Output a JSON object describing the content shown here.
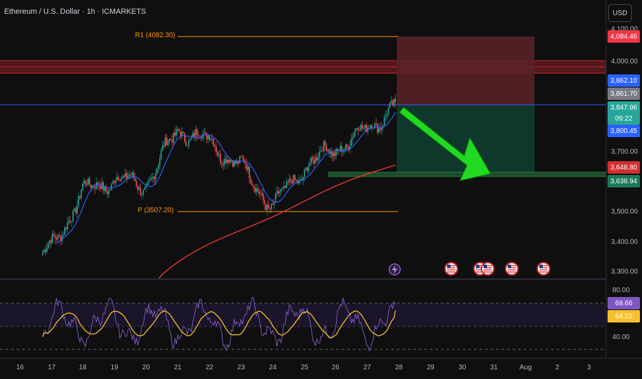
{
  "header": {
    "symbol_title": "Ethereum / U.S. Dollar · 1h · ICMARKETS",
    "currency_button": "USD"
  },
  "pivots": {
    "r1_label": "R1 (4082.30)",
    "p_label": "P (3507.20)"
  },
  "price_axis": {
    "ticks": [
      "4,100.00",
      "4,000.00",
      "3,700.00",
      "3,500.00",
      "3,400.00",
      "3,300.00"
    ]
  },
  "rsi_axis": {
    "ticks": [
      "80.00",
      "40.00"
    ]
  },
  "price_tags": [
    {
      "label": "4,084.46",
      "color": "#f23645"
    },
    {
      "label": "3,862.10",
      "color": "#2962ff"
    },
    {
      "label": "3,861.70",
      "color": "#787b86"
    },
    {
      "label": "3,847.96",
      "color": "#26a69a"
    },
    {
      "label": "09:22",
      "color": "#26a69a"
    },
    {
      "label": "3,800.45",
      "color": "#2962ff"
    },
    {
      "label": "3,648.80",
      "color": "#d32f2f"
    },
    {
      "label": "3,638.94",
      "color": "#1b7a57"
    },
    {
      "label": "69.66",
      "color": "#7e57c2"
    },
    {
      "label": "64.22",
      "color": "#f9c02e"
    }
  ],
  "time_axis": {
    "labels": [
      "16",
      "17",
      "18",
      "19",
      "20",
      "21",
      "22",
      "23",
      "24",
      "25",
      "26",
      "27",
      "28",
      "29",
      "30",
      "31",
      "Aug",
      "2",
      "3"
    ]
  },
  "colors": {
    "up": "#26a69a",
    "down": "#ef5350",
    "ma_fast": "#2962ff",
    "ma_slow": "#e53935",
    "rsi": "#7e57c2",
    "rsi_ma": "#f9c02e",
    "pivot": "#ff9800",
    "arrow": "#22d922"
  },
  "icons": [
    "flash-event-icon",
    "us-flag-event-icon",
    "us-flag-event-icon",
    "us-flag-event-icon",
    "us-flag-event-icon",
    "us-flag-event-icon"
  ],
  "chart_data": {
    "type": "candlestick",
    "title": "Ethereum / U.S. Dollar · 1h · ICMARKETS",
    "x_dates": [
      "16",
      "17",
      "18",
      "19",
      "20",
      "21",
      "22",
      "23",
      "24",
      "25",
      "26",
      "27",
      "28"
    ],
    "close_daily_approx": [
      3320,
      3380,
      3560,
      3600,
      3580,
      3760,
      3720,
      3640,
      3510,
      3640,
      3700,
      3760,
      3848
    ],
    "ylim": [
      3280,
      4130
    ],
    "pivot_r1": 4082.3,
    "pivot_p": 3507.2,
    "resistance_zone": [
      3950,
      4000
    ],
    "support_zone": [
      3638.94,
      3648.8
    ],
    "current_price": 3847.96,
    "ma_fast_last": 3800.45,
    "ma_slow_last": 3648.8,
    "trade_box": {
      "entry": 3847.96,
      "stop": 4084.46,
      "target": 3638.94
    },
    "rsi": {
      "last": 69.66,
      "ma_last": 64.22,
      "levels": [
        70,
        50,
        30
      ],
      "ylim": [
        20,
        90
      ]
    }
  }
}
